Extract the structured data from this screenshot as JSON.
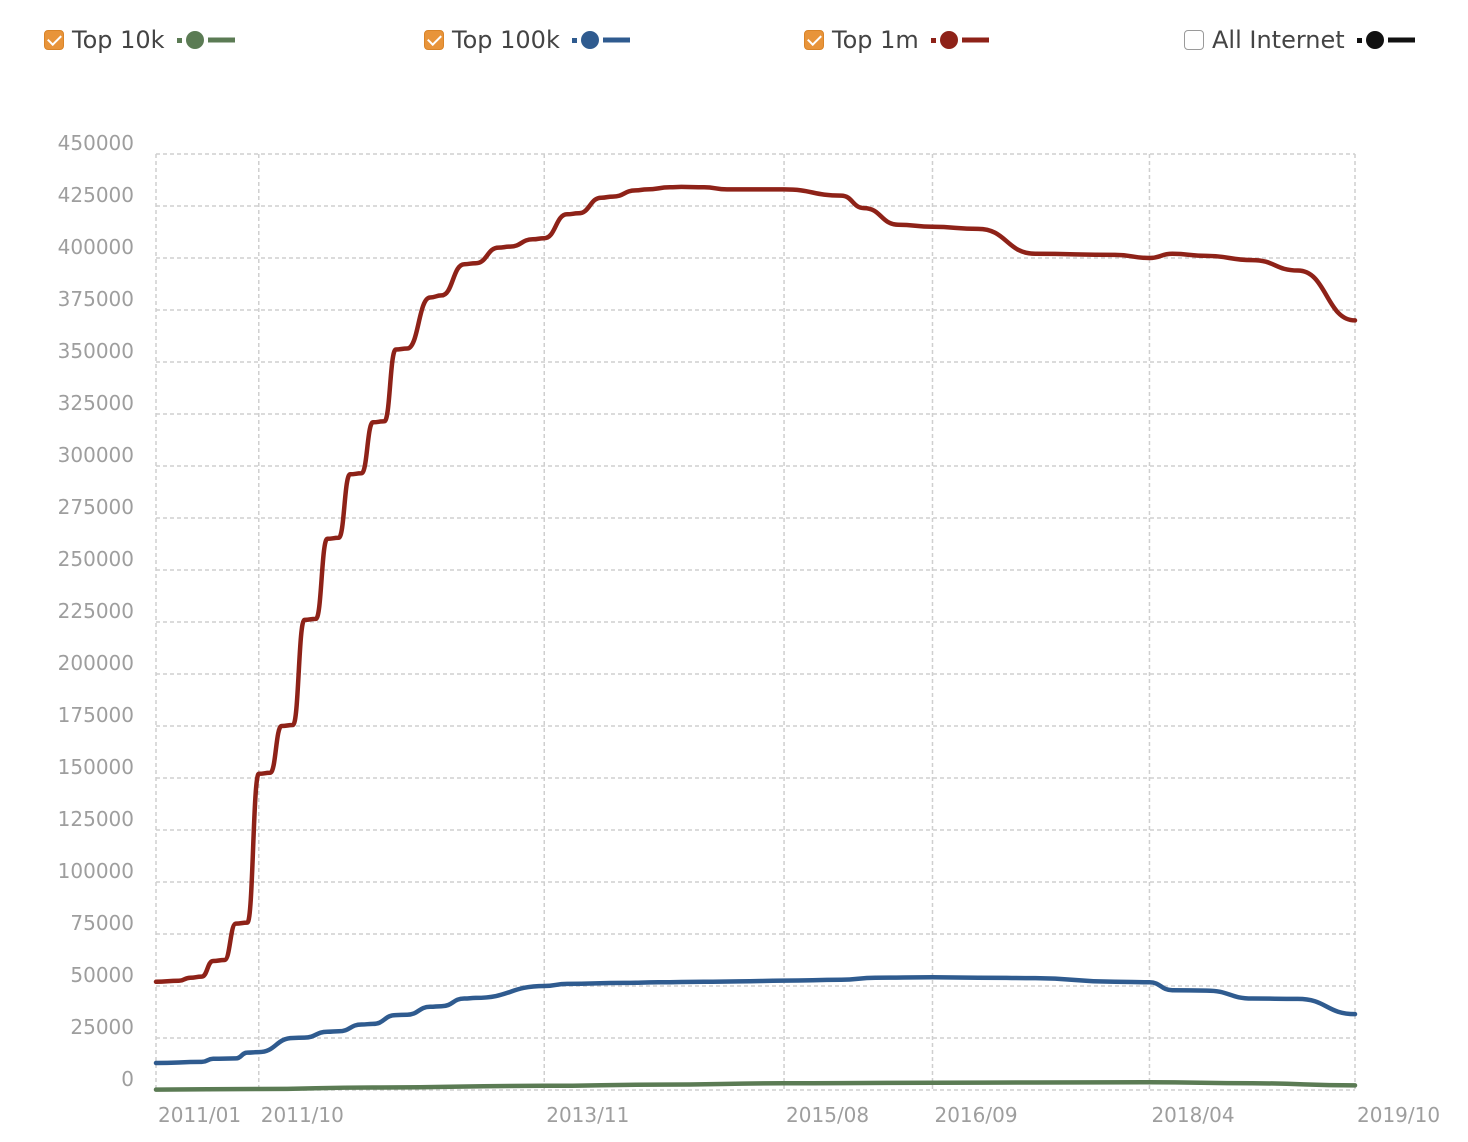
{
  "legend": {
    "items": [
      {
        "label": "Top 10k",
        "checked": true,
        "color": "#5b7b54",
        "icon": "dot-line-swatch"
      },
      {
        "label": "Top 100k",
        "checked": true,
        "color": "#2f5b8f",
        "icon": "dot-line-swatch"
      },
      {
        "label": "Top 1m",
        "checked": true,
        "color": "#8e2218",
        "icon": "dot-line-swatch"
      },
      {
        "label": "All Internet",
        "checked": false,
        "color": "#111111",
        "icon": "dot-line-swatch"
      }
    ]
  },
  "chart_data": {
    "type": "line",
    "ylim": [
      0,
      450000
    ],
    "yticks": [
      0,
      25000,
      50000,
      75000,
      100000,
      125000,
      150000,
      175000,
      200000,
      225000,
      250000,
      275000,
      300000,
      325000,
      350000,
      375000,
      400000,
      425000,
      450000
    ],
    "xlim": [
      "2011-01",
      "2019-10"
    ],
    "xticks": [
      "2011/01",
      "2011/10",
      "2013/11",
      "2015/08",
      "2016/09",
      "2018/04",
      "2019/10"
    ],
    "grid": true,
    "legend_position": "top",
    "series": [
      {
        "name": "Top 10k",
        "color": "#5b7b54",
        "x": [
          "2011-01",
          "2011-10",
          "2012-08",
          "2013-11",
          "2014-09",
          "2015-08",
          "2016-01",
          "2016-09",
          "2017-06",
          "2018-04",
          "2019-01",
          "2019-10"
        ],
        "y": [
          200,
          500,
          1200,
          2000,
          2600,
          3200,
          3300,
          3500,
          3600,
          3700,
          3200,
          2200
        ]
      },
      {
        "name": "Top 100k",
        "color": "#2f5b8f",
        "x": [
          "2011-01",
          "2011-05",
          "2011-06",
          "2011-08",
          "2011-09",
          "2011-10",
          "2012-01",
          "2012-02",
          "2012-04",
          "2012-05",
          "2012-07",
          "2012-08",
          "2012-10",
          "2012-11",
          "2013-01",
          "2013-02",
          "2013-04",
          "2013-05",
          "2013-11",
          "2014-01",
          "2014-06",
          "2014-09",
          "2015-01",
          "2015-04",
          "2015-08",
          "2016-01",
          "2016-04",
          "2016-09",
          "2017-01",
          "2017-06",
          "2018-01",
          "2018-04",
          "2018-06",
          "2018-09",
          "2019-01",
          "2019-05",
          "2019-10"
        ],
        "y": [
          13000,
          13500,
          15000,
          15200,
          18000,
          18200,
          25000,
          25200,
          28000,
          28200,
          31500,
          31800,
          36000,
          36200,
          40000,
          40300,
          44000,
          44300,
          50000,
          51000,
          51500,
          51800,
          52000,
          52200,
          52600,
          53000,
          54000,
          54200,
          54000,
          53800,
          52000,
          51800,
          48000,
          47800,
          44000,
          43800,
          36500
        ]
      },
      {
        "name": "Top 1m",
        "color": "#8e2218",
        "x": [
          "2011-01",
          "2011-03",
          "2011-04",
          "2011-05",
          "2011-06",
          "2011-07",
          "2011-08",
          "2011-09",
          "2011-10",
          "2011-11",
          "2011-12",
          "2012-01",
          "2012-02",
          "2012-03",
          "2012-04",
          "2012-05",
          "2012-06",
          "2012-07",
          "2012-08",
          "2012-09",
          "2012-10",
          "2012-11",
          "2013-01",
          "2013-02",
          "2013-04",
          "2013-05",
          "2013-07",
          "2013-08",
          "2013-10",
          "2013-11",
          "2014-01",
          "2014-02",
          "2014-04",
          "2014-05",
          "2014-07",
          "2014-08",
          "2014-10",
          "2014-11",
          "2015-01",
          "2015-03",
          "2015-08",
          "2016-01",
          "2016-03",
          "2016-06",
          "2016-09",
          "2017-01",
          "2017-06",
          "2018-01",
          "2018-04",
          "2018-06",
          "2018-09",
          "2019-01",
          "2019-05",
          "2019-10"
        ],
        "y": [
          52000,
          52500,
          54000,
          54500,
          62000,
          62500,
          80000,
          80500,
          152000,
          152500,
          175000,
          175500,
          226000,
          226500,
          265000,
          265500,
          296000,
          296500,
          321000,
          321500,
          356000,
          356500,
          381000,
          382000,
          397000,
          397500,
          405000,
          405500,
          409000,
          409500,
          421000,
          421500,
          429000,
          429500,
          432500,
          433000,
          434000,
          434200,
          434000,
          433000,
          433000,
          430000,
          424000,
          416000,
          415000,
          414000,
          402000,
          401500,
          400000,
          402000,
          401000,
          399000,
          394000,
          370000
        ]
      }
    ]
  }
}
